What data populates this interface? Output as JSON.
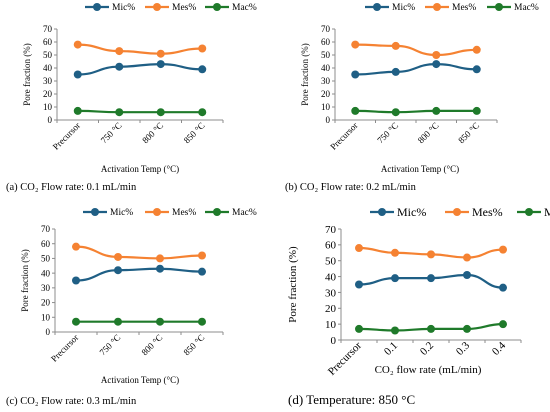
{
  "colors": {
    "mic": "#1f5f85",
    "mes": "#f58232",
    "mac": "#1f7a2a",
    "axis": "#8c8c8c"
  },
  "chart_data": [
    {
      "type": "line",
      "caption": "(a) CO₂ Flow rate: 0.1 mL/min",
      "xlabel": "Activation Temp (°C)",
      "ylabel": "Pore fraction (%)",
      "categories": [
        "Precursor",
        "750 °C",
        "800 °C",
        "850 °C"
      ],
      "ylim": [
        0,
        70
      ],
      "yticks": [
        "0",
        "10",
        "20",
        "30",
        "40",
        "50",
        "60",
        "70"
      ],
      "legend_position": "top",
      "series": [
        {
          "name": "Mic%",
          "values": [
            35,
            41,
            43,
            39
          ]
        },
        {
          "name": "Mes%",
          "values": [
            58,
            53,
            51,
            55
          ]
        },
        {
          "name": "Mac%",
          "values": [
            7,
            6,
            6,
            6
          ]
        }
      ]
    },
    {
      "type": "line",
      "caption": "(b) CO₂ Flow rate: 0.2 mL/min",
      "xlabel": "Activation Temp (°C)",
      "ylabel": "Pore fraction (%)",
      "categories": [
        "Precursor",
        "750 °C",
        "800 °C",
        "850 °C"
      ],
      "ylim": [
        0,
        70
      ],
      "yticks": [
        "0",
        "10",
        "20",
        "30",
        "40",
        "50",
        "60",
        "70"
      ],
      "legend_position": "top",
      "series": [
        {
          "name": "Mic%",
          "values": [
            35,
            37,
            43,
            39
          ]
        },
        {
          "name": "Mes%",
          "values": [
            58,
            57,
            50,
            54
          ]
        },
        {
          "name": "Mac%",
          "values": [
            7,
            6,
            7,
            7
          ]
        }
      ]
    },
    {
      "type": "line",
      "caption": "(c) CO₂ Flow rate: 0.3 mL/min",
      "xlabel": "Activation Temp (°C)",
      "ylabel": "Pore fraction (%)",
      "categories": [
        "Precursor",
        "750 °C",
        "800 °C",
        "850 °C"
      ],
      "ylim": [
        0,
        70
      ],
      "yticks": [
        "0",
        "10",
        "20",
        "30",
        "40",
        "50",
        "60",
        "70"
      ],
      "legend_position": "top",
      "series": [
        {
          "name": "Mic%",
          "values": [
            35,
            42,
            43,
            41
          ]
        },
        {
          "name": "Mes%",
          "values": [
            58,
            51,
            50,
            52
          ]
        },
        {
          "name": "Mac%",
          "values": [
            7,
            7,
            7,
            7
          ]
        }
      ]
    },
    {
      "type": "line",
      "caption": "(d) Temperature: 850 °C",
      "xlabel": "CO₂ flow rate (mL/min)",
      "ylabel": "Pore fraction (%)",
      "categories": [
        "Precursor",
        "0.1",
        "0.2",
        "0.3",
        "0.4"
      ],
      "ylim": [
        0,
        70
      ],
      "yticks": [
        "0",
        "10",
        "20",
        "30",
        "40",
        "50",
        "60",
        "70"
      ],
      "legend_position": "top",
      "series": [
        {
          "name": "Mic%",
          "values": [
            35,
            39,
            39,
            41,
            33
          ]
        },
        {
          "name": "Mes%",
          "values": [
            58,
            55,
            54,
            52,
            57
          ]
        },
        {
          "name": "Mac%",
          "values": [
            7,
            6,
            7,
            7,
            10
          ]
        }
      ]
    }
  ]
}
